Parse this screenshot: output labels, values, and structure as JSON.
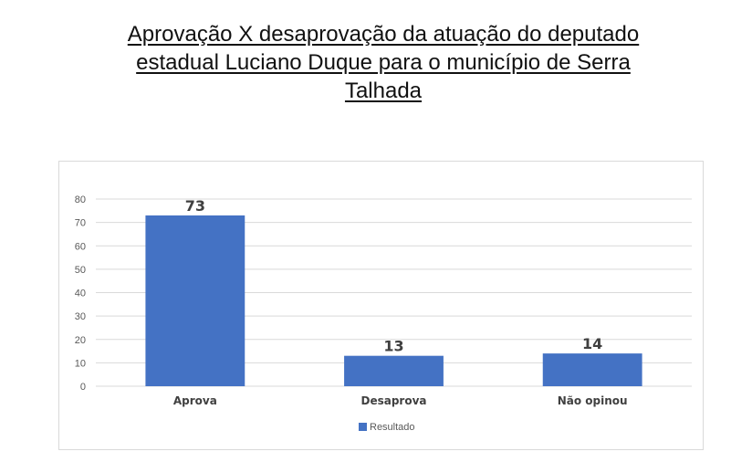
{
  "title_lines": [
    "Aprovação X desaprovação da atuação do deputado",
    "estadual Luciano Duque para o município de Serra",
    "Talhada"
  ],
  "chart_data": {
    "type": "bar",
    "categories": [
      "Aprova",
      "Desaprova",
      "Não opinou"
    ],
    "series": [
      {
        "name": "Resultado",
        "values": [
          73,
          13,
          14
        ],
        "color": "#4472c4"
      }
    ],
    "ylim": [
      0,
      80
    ],
    "yticks": [
      0,
      10,
      20,
      30,
      40,
      50,
      60,
      70,
      80
    ],
    "grid": true,
    "legend": "bottom",
    "data_labels": [
      "73",
      "13",
      "14"
    ]
  }
}
